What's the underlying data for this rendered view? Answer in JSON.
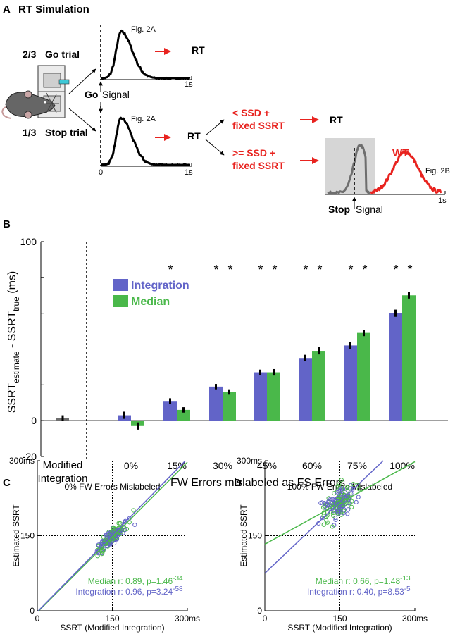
{
  "panel_a": {
    "label": "A",
    "title": "RT Simulation",
    "go_fraction": "2/3",
    "go_trial": "Go trial",
    "stop_fraction": "1/3",
    "stop_trial": "Stop trial",
    "fig2a_top": "Fig. 2A",
    "fig2a_bottom": "Fig. 2A",
    "rt_top": "RT",
    "rt_middle": "RT",
    "rt_right": "RT",
    "go_word": "Go",
    "signal_word": "Signal",
    "axis_0": "0",
    "axis_1s_top": "1s",
    "axis_1s_bottom": "1s",
    "axis_1s_right": "1s",
    "cond_lt_1": "< SSD +",
    "cond_lt_2": "fixed SSRT",
    "cond_ge_1": ">= SSD +",
    "cond_ge_2": "fixed SSRT",
    "wt": "WT",
    "fig2b": "Fig. 2B",
    "stop_word": "Stop",
    "stop_signal_word": "Signal"
  },
  "colors": {
    "integration": "#6264c8",
    "median": "#4ab84a",
    "accent_red": "#e8231f",
    "gray_trace": "#6e6e6e",
    "gray_box": "#d6d6d6"
  },
  "chart_data": [
    {
      "panel": "B",
      "type": "bar",
      "ylabel_main": "SSRT",
      "ylabel_sub1": "estimate",
      "ylabel_mid": " - SSRT",
      "ylabel_sub2": "true",
      "ylabel_unit": " (ms)",
      "ylim": [
        -20,
        100
      ],
      "yticks": [
        -20,
        0,
        100
      ],
      "xlabel": "FW Errors mislabeled as FS Errors",
      "modified": {
        "label_1": "Modified",
        "label_2": "Integration",
        "value": 1.5,
        "error": 1.5
      },
      "categories": [
        "0%",
        "15%",
        "30%",
        "45%",
        "60%",
        "75%",
        "100%"
      ],
      "series": [
        {
          "name": "Integration",
          "values": [
            3,
            11,
            19,
            27,
            35,
            42,
            60
          ],
          "errors": [
            2,
            1.5,
            1.5,
            1.5,
            1.8,
            1.8,
            2
          ]
        },
        {
          "name": "Median",
          "values": [
            -3,
            6,
            16,
            27,
            39,
            49,
            70
          ],
          "errors": [
            2,
            1.5,
            1.5,
            1.8,
            2,
            1.8,
            1.8
          ]
        }
      ],
      "significance": [
        {
          "category": "15%",
          "stars": [
            "*",
            ""
          ]
        },
        {
          "category": "30%",
          "stars": [
            "*",
            "*"
          ]
        },
        {
          "category": "45%",
          "stars": [
            "*",
            "*"
          ]
        },
        {
          "category": "60%",
          "stars": [
            "*",
            "*"
          ]
        },
        {
          "category": "75%",
          "stars": [
            "*",
            "*"
          ]
        },
        {
          "category": "100%",
          "stars": [
            "*",
            "*"
          ]
        }
      ]
    },
    {
      "panel": "C",
      "type": "scatter",
      "title": "0% FW Errors Mislabeled",
      "xlabel": "SSRT (Modified Integration)",
      "ylabel": "Estimated SSRT",
      "xlim": [
        0,
        300
      ],
      "ylim": [
        0,
        300
      ],
      "xtick_labels": [
        "0",
        "150",
        "300ms"
      ],
      "ytick_labels": [
        "0",
        "150",
        "300ms"
      ],
      "reference": 150,
      "cloud": {
        "center": [
          152,
          150
        ],
        "spread": [
          14,
          12
        ],
        "corr_slope": 0.9
      },
      "fits": [
        {
          "series": "Median",
          "slope": 1.0,
          "intercept": -3
        },
        {
          "series": "Integration",
          "slope": 1.02,
          "intercept": -2
        }
      ],
      "stats": [
        {
          "series": "Median",
          "text": "Median r: 0.89, p=1.46",
          "exp": "-34"
        },
        {
          "series": "Integration",
          "text": "Integration r: 0.96, p=3.24",
          "exp": "-58"
        }
      ]
    },
    {
      "panel": "D",
      "type": "scatter",
      "title": "100% FW Errors Mislabeled",
      "xlabel": "SSRT (Modified Integration)",
      "ylabel": "Estimated SSRT",
      "xlim": [
        0,
        300
      ],
      "ylim": [
        0,
        300
      ],
      "xtick_labels": [
        "0",
        "150",
        "300ms"
      ],
      "ytick_labels": [
        "0",
        "150",
        "300ms"
      ],
      "reference": 150,
      "cloud": {
        "center": [
          150,
          215
        ],
        "spread": [
          18,
          25
        ],
        "corr_slope": 0.6
      },
      "fits": [
        {
          "series": "Median",
          "slope": 0.55,
          "intercept": 133
        },
        {
          "series": "Integration",
          "slope": 0.95,
          "intercept": 75
        }
      ],
      "stats": [
        {
          "series": "Median",
          "text": "Median r: 0.66, p=1.48",
          "exp": "-13"
        },
        {
          "series": "Integration",
          "text": "Integration r: 0.40, p=8.53",
          "exp": "-5"
        }
      ]
    }
  ]
}
